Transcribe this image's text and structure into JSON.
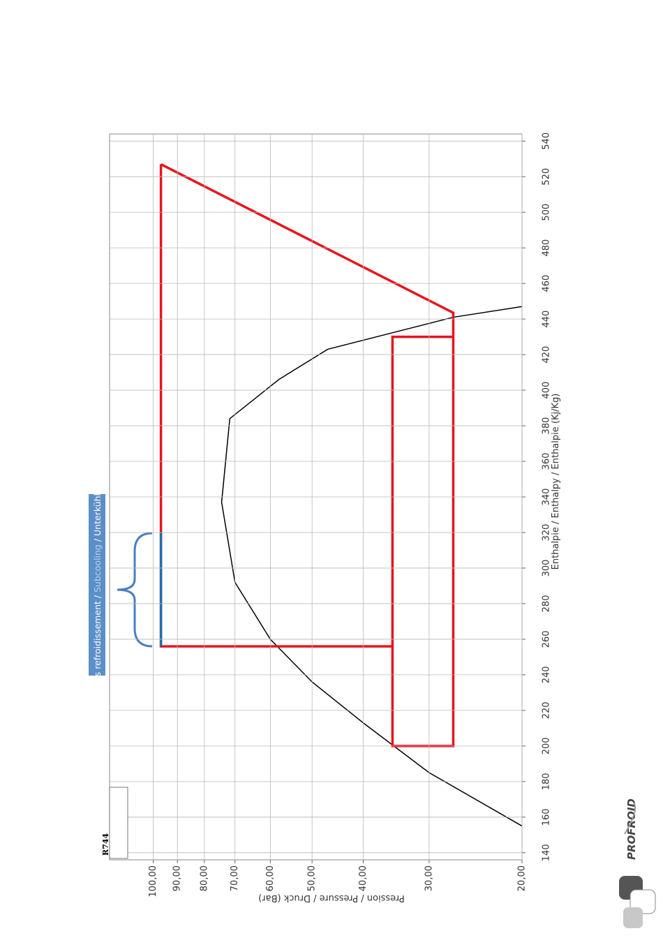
{
  "chart_data": {
    "type": "line",
    "title": "R744",
    "xlabel": "Enthalpie / Enthalpy / Enthalpie (Kj/Kg)",
    "ylabel": "Pression / Pressure / Druck (Bar)",
    "annotation": [
      "Sous refroidissement / ",
      "Subcooling",
      " / Unterkühlung"
    ],
    "logo": "PROFROID",
    "xlim": [
      136,
      544
    ],
    "xticks": [
      140,
      160,
      180,
      200,
      220,
      240,
      260,
      280,
      300,
      320,
      340,
      360,
      380,
      400,
      420,
      440,
      460,
      480,
      500,
      520,
      540
    ],
    "ylim": [
      20,
      121
    ],
    "yscale": "log",
    "yticks": [
      {
        "value": 20,
        "label": "20,00"
      },
      {
        "value": 30,
        "label": "30,00"
      },
      {
        "value": 40,
        "label": "40,00"
      },
      {
        "value": 50,
        "label": "50,00"
      },
      {
        "value": 60,
        "label": "60,00"
      },
      {
        "value": 70,
        "label": "70,00"
      },
      {
        "value": 80,
        "label": "80,00"
      },
      {
        "value": 90,
        "label": "90,00"
      },
      {
        "value": 100,
        "label": "100,00"
      }
    ],
    "grid": true,
    "series": [
      {
        "color": "#000000",
        "x": [
          155,
          185,
          213,
          236,
          260,
          292,
          337,
          384,
          406,
          423,
          441,
          447
        ],
        "values": [
          20,
          30,
          40,
          50,
          60,
          70,
          74.2,
          71.6,
          57.8,
          46.7,
          27,
          20
        ]
      },
      {
        "color": "#e8141c",
        "x": [
          527,
          256,
          256,
          200,
          200,
          443.5,
          527
        ],
        "values": [
          96.7,
          96.7,
          35.2,
          35.2,
          27,
          27,
          96.7
        ]
      },
      {
        "color": "#e8141c",
        "x": [
          256,
          430,
          430
        ],
        "values": [
          35.2,
          35.2,
          27
        ]
      },
      {
        "color": "#1f6fb0",
        "x": [
          256,
          320
        ],
        "values": [
          96.7,
          96.7
        ]
      }
    ]
  }
}
